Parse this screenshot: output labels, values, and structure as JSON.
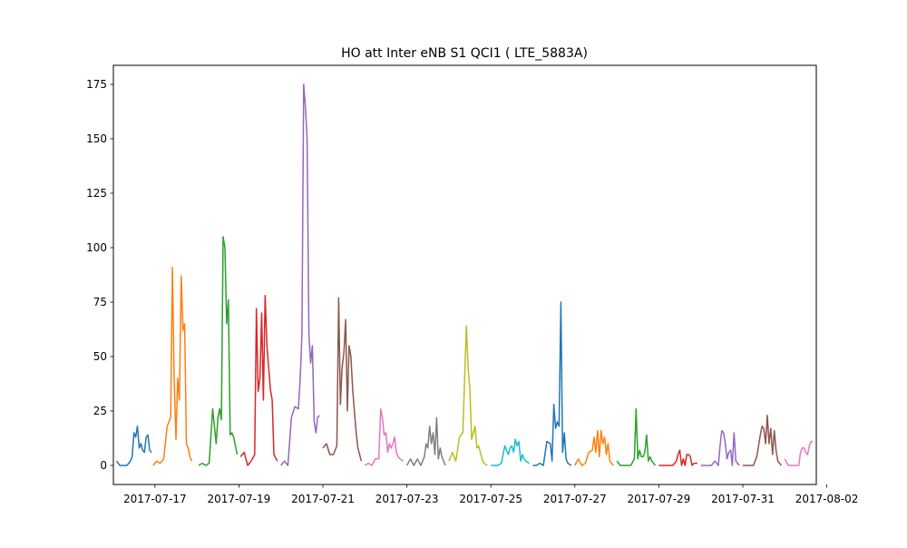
{
  "chart_data": {
    "type": "line",
    "title": "HO att Inter eNB S1 QCI1 ( LTE_5883A)",
    "xlabel": "",
    "ylabel": "",
    "ylim": [
      -8.75,
      183.75
    ],
    "xlim": [
      "2017-07-16 00:15",
      "2017-08-01 18:00"
    ],
    "yticks": [
      0,
      25,
      50,
      75,
      100,
      125,
      150,
      175
    ],
    "xticks": [
      "2017-07-17",
      "2017-07-19",
      "2017-07-21",
      "2017-07-23",
      "2017-07-25",
      "2017-07-27",
      "2017-07-29",
      "2017-07-31",
      "2017-08-02"
    ],
    "grid": false,
    "legend": "none",
    "colors": [
      "#1f77b4",
      "#ff7f0e",
      "#2ca02c",
      "#d62728",
      "#9467bd",
      "#8c564b",
      "#e377c2",
      "#7f7f7f",
      "#bcbd22",
      "#17becf"
    ],
    "series": [
      {
        "x": [
          "2017-07-16 02:00",
          "2017-07-16 04:00",
          "2017-07-16 06:00",
          "2017-07-16 08:00",
          "2017-07-16 10:00",
          "2017-07-16 11:00",
          "2017-07-16 12:00",
          "2017-07-16 13:00",
          "2017-07-16 14:00",
          "2017-07-16 15:00",
          "2017-07-16 16:00",
          "2017-07-16 17:00",
          "2017-07-16 18:00",
          "2017-07-16 19:00",
          "2017-07-16 20:00",
          "2017-07-16 21:00",
          "2017-07-16 22:00"
        ],
        "y": [
          2,
          0,
          0,
          0,
          2,
          4,
          15,
          13,
          18,
          8,
          10,
          7,
          6,
          13,
          14,
          7,
          6
        ]
      },
      {
        "x": [
          "2017-07-16 23:00",
          "2017-07-17 01:00",
          "2017-07-17 03:00",
          "2017-07-17 05:00",
          "2017-07-17 07:00",
          "2017-07-17 09:00",
          "2017-07-17 10:00",
          "2017-07-17 11:00",
          "2017-07-17 12:00",
          "2017-07-17 13:00",
          "2017-07-17 14:00",
          "2017-07-17 15:00",
          "2017-07-17 16:00",
          "2017-07-17 17:00",
          "2017-07-17 18:00",
          "2017-07-17 19:00",
          "2017-07-17 20:00",
          "2017-07-17 21:00"
        ],
        "y": [
          0,
          2,
          1,
          3,
          18,
          22,
          91,
          40,
          12,
          40,
          30,
          87,
          62,
          65,
          10,
          8,
          4,
          2
        ]
      },
      {
        "x": [
          "2017-07-18 01:00",
          "2017-07-18 03:00",
          "2017-07-18 05:00",
          "2017-07-18 07:00",
          "2017-07-18 09:00",
          "2017-07-18 11:00",
          "2017-07-18 12:00",
          "2017-07-18 13:00",
          "2017-07-18 14:00",
          "2017-07-18 15:00",
          "2017-07-18 16:00",
          "2017-07-18 17:00",
          "2017-07-18 18:00",
          "2017-07-18 19:00",
          "2017-07-18 20:00",
          "2017-07-18 21:00",
          "2017-07-18 23:00"
        ],
        "y": [
          0,
          1,
          0,
          1,
          26,
          10,
          22,
          26,
          21,
          105,
          100,
          65,
          76,
          14,
          15,
          13,
          5
        ]
      },
      {
        "x": [
          "2017-07-19 01:00",
          "2017-07-19 03:00",
          "2017-07-19 05:00",
          "2017-07-19 07:00",
          "2017-07-19 09:00",
          "2017-07-19 10:00",
          "2017-07-19 11:00",
          "2017-07-19 12:00",
          "2017-07-19 13:00",
          "2017-07-19 14:00",
          "2017-07-19 15:00",
          "2017-07-19 16:00",
          "2017-07-19 17:00",
          "2017-07-19 18:00",
          "2017-07-19 19:00",
          "2017-07-19 20:00",
          "2017-07-19 22:00"
        ],
        "y": [
          4,
          6,
          0,
          2,
          5,
          72,
          34,
          40,
          70,
          30,
          78,
          55,
          45,
          35,
          30,
          5,
          2
        ]
      },
      {
        "x": [
          "2017-07-20 00:00",
          "2017-07-20 02:00",
          "2017-07-20 04:00",
          "2017-07-20 06:00",
          "2017-07-20 08:00",
          "2017-07-20 10:00",
          "2017-07-20 11:00",
          "2017-07-20 12:00",
          "2017-07-20 13:00",
          "2017-07-20 14:00",
          "2017-07-20 15:00",
          "2017-07-20 16:00",
          "2017-07-20 17:00",
          "2017-07-20 18:00",
          "2017-07-20 19:00",
          "2017-07-20 20:00",
          "2017-07-20 21:00",
          "2017-07-20 22:00"
        ],
        "y": [
          0,
          2,
          0,
          22,
          27,
          26,
          39,
          60,
          175,
          165,
          150,
          60,
          47,
          55,
          20,
          15,
          22,
          23
        ]
      },
      {
        "x": [
          "2017-07-21 00:00",
          "2017-07-21 02:00",
          "2017-07-21 04:00",
          "2017-07-21 06:00",
          "2017-07-21 08:00",
          "2017-07-21 09:00",
          "2017-07-21 10:00",
          "2017-07-21 11:00",
          "2017-07-21 12:00",
          "2017-07-21 13:00",
          "2017-07-21 14:00",
          "2017-07-21 15:00",
          "2017-07-21 16:00",
          "2017-07-21 17:00",
          "2017-07-21 18:00",
          "2017-07-21 19:00",
          "2017-07-21 20:00",
          "2017-07-21 22:00"
        ],
        "y": [
          8,
          10,
          5,
          5,
          9,
          77,
          28,
          45,
          52,
          67,
          25,
          55,
          50,
          35,
          25,
          15,
          8,
          2
        ]
      },
      {
        "x": [
          "2017-07-22 00:00",
          "2017-07-22 02:00",
          "2017-07-22 04:00",
          "2017-07-22 06:00",
          "2017-07-22 08:00",
          "2017-07-22 09:00",
          "2017-07-22 10:00",
          "2017-07-22 11:00",
          "2017-07-22 12:00",
          "2017-07-22 13:00",
          "2017-07-22 14:00",
          "2017-07-22 15:00",
          "2017-07-22 16:00",
          "2017-07-22 17:00",
          "2017-07-22 18:00",
          "2017-07-22 19:00",
          "2017-07-22 20:00",
          "2017-07-22 22:00"
        ],
        "y": [
          0,
          1,
          0,
          3,
          3,
          26,
          22,
          14,
          15,
          6,
          10,
          8,
          10,
          13,
          6,
          4,
          3,
          2
        ]
      },
      {
        "x": [
          "2017-07-23 00:00",
          "2017-07-23 02:00",
          "2017-07-23 04:00",
          "2017-07-23 06:00",
          "2017-07-23 08:00",
          "2017-07-23 10:00",
          "2017-07-23 11:00",
          "2017-07-23 12:00",
          "2017-07-23 13:00",
          "2017-07-23 14:00",
          "2017-07-23 15:00",
          "2017-07-23 16:00",
          "2017-07-23 17:00",
          "2017-07-23 18:00",
          "2017-07-23 19:00",
          "2017-07-23 20:00",
          "2017-07-23 22:00"
        ],
        "y": [
          0,
          3,
          0,
          3,
          0,
          4,
          10,
          8,
          18,
          10,
          15,
          5,
          22,
          3,
          8,
          4,
          0
        ]
      },
      {
        "x": [
          "2017-07-24 00:00",
          "2017-07-24 02:00",
          "2017-07-24 04:00",
          "2017-07-24 06:00",
          "2017-07-24 08:00",
          "2017-07-24 10:00",
          "2017-07-24 11:00",
          "2017-07-24 12:00",
          "2017-07-24 13:00",
          "2017-07-24 14:00",
          "2017-07-24 15:00",
          "2017-07-24 16:00",
          "2017-07-24 17:00",
          "2017-07-24 18:00",
          "2017-07-24 19:00",
          "2017-07-24 20:00",
          "2017-07-24 22:00"
        ],
        "y": [
          2,
          6,
          2,
          13,
          15,
          64,
          45,
          35,
          12,
          15,
          18,
          8,
          9,
          6,
          3,
          1,
          0
        ]
      },
      {
        "x": [
          "2017-07-25 00:00",
          "2017-07-25 02:00",
          "2017-07-25 04:00",
          "2017-07-25 06:00",
          "2017-07-25 08:00",
          "2017-07-25 10:00",
          "2017-07-25 11:00",
          "2017-07-25 12:00",
          "2017-07-25 13:00",
          "2017-07-25 14:00",
          "2017-07-25 15:00",
          "2017-07-25 16:00",
          "2017-07-25 17:00",
          "2017-07-25 18:00",
          "2017-07-25 19:00",
          "2017-07-25 20:00",
          "2017-07-25 22:00"
        ],
        "y": [
          0,
          0,
          0,
          1,
          9,
          5,
          8,
          9,
          6,
          12,
          9,
          11,
          2,
          5,
          3,
          2,
          1
        ]
      },
      {
        "x": [
          "2017-07-26 00:00",
          "2017-07-26 02:00",
          "2017-07-26 04:00",
          "2017-07-26 06:00",
          "2017-07-26 08:00",
          "2017-07-26 10:00",
          "2017-07-26 11:00",
          "2017-07-26 12:00",
          "2017-07-26 13:00",
          "2017-07-26 14:00",
          "2017-07-26 15:00",
          "2017-07-26 16:00",
          "2017-07-26 17:00",
          "2017-07-26 18:00",
          "2017-07-26 19:00",
          "2017-07-26 20:00",
          "2017-07-26 22:00"
        ],
        "y": [
          0,
          0,
          1,
          0,
          11,
          10,
          2,
          28,
          17,
          20,
          18,
          75,
          6,
          15,
          3,
          1,
          0
        ]
      },
      {
        "x": [
          "2017-07-27 00:00",
          "2017-07-27 02:00",
          "2017-07-27 04:00",
          "2017-07-27 06:00",
          "2017-07-27 08:00",
          "2017-07-27 10:00",
          "2017-07-27 11:00",
          "2017-07-27 12:00",
          "2017-07-27 13:00",
          "2017-07-27 14:00",
          "2017-07-27 15:00",
          "2017-07-27 16:00",
          "2017-07-27 17:00",
          "2017-07-27 18:00",
          "2017-07-27 19:00",
          "2017-07-27 20:00",
          "2017-07-27 22:00"
        ],
        "y": [
          0,
          3,
          0,
          1,
          6,
          7,
          13,
          6,
          16,
          4,
          16,
          10,
          13,
          5,
          10,
          2,
          0
        ]
      },
      {
        "x": [
          "2017-07-28 00:00",
          "2017-07-28 02:00",
          "2017-07-28 04:00",
          "2017-07-28 06:00",
          "2017-07-28 08:00",
          "2017-07-28 10:00",
          "2017-07-28 11:00",
          "2017-07-28 12:00",
          "2017-07-28 13:00",
          "2017-07-28 14:00",
          "2017-07-28 15:00",
          "2017-07-28 16:00",
          "2017-07-28 17:00",
          "2017-07-28 18:00",
          "2017-07-28 19:00",
          "2017-07-28 20:00",
          "2017-07-28 22:00"
        ],
        "y": [
          2,
          0,
          0,
          0,
          0,
          3,
          26,
          3,
          7,
          4,
          4,
          6,
          14,
          2,
          4,
          2,
          0
        ]
      },
      {
        "x": [
          "2017-07-29 00:00",
          "2017-07-29 02:00",
          "2017-07-29 04:00",
          "2017-07-29 06:00",
          "2017-07-29 08:00",
          "2017-07-29 10:00",
          "2017-07-29 11:00",
          "2017-07-29 12:00",
          "2017-07-29 13:00",
          "2017-07-29 14:00",
          "2017-07-29 15:00",
          "2017-07-29 16:00",
          "2017-07-29 17:00",
          "2017-07-29 18:00",
          "2017-07-29 19:00",
          "2017-07-29 20:00",
          "2017-07-29 22:00"
        ],
        "y": [
          0,
          0,
          0,
          0,
          0,
          2,
          5,
          7,
          0,
          3,
          0,
          5,
          5,
          4,
          0,
          1,
          1
        ]
      },
      {
        "x": [
          "2017-07-30 00:00",
          "2017-07-30 02:00",
          "2017-07-30 04:00",
          "2017-07-30 06:00",
          "2017-07-30 08:00",
          "2017-07-30 10:00",
          "2017-07-30 11:00",
          "2017-07-30 12:00",
          "2017-07-30 13:00",
          "2017-07-30 14:00",
          "2017-07-30 15:00",
          "2017-07-30 16:00",
          "2017-07-30 17:00",
          "2017-07-30 18:00",
          "2017-07-30 19:00",
          "2017-07-30 20:00",
          "2017-07-30 22:00"
        ],
        "y": [
          0,
          0,
          0,
          0,
          2,
          0,
          9,
          16,
          15,
          10,
          3,
          6,
          7,
          0,
          15,
          2,
          0
        ]
      },
      {
        "x": [
          "2017-07-31 00:00",
          "2017-07-31 02:00",
          "2017-07-31 04:00",
          "2017-07-31 06:00",
          "2017-07-31 08:00",
          "2017-07-31 10:00",
          "2017-07-31 11:00",
          "2017-07-31 12:00",
          "2017-07-31 13:00",
          "2017-07-31 14:00",
          "2017-07-31 15:00",
          "2017-07-31 16:00",
          "2017-07-31 17:00",
          "2017-07-31 18:00",
          "2017-07-31 19:00",
          "2017-07-31 20:00",
          "2017-07-31 22:00"
        ],
        "y": [
          0,
          0,
          0,
          0,
          4,
          14,
          18,
          17,
          10,
          23,
          10,
          17,
          5,
          16,
          7,
          2,
          0
        ]
      },
      {
        "x": [
          "2017-08-01 00:00",
          "2017-08-01 02:00",
          "2017-08-01 04:00",
          "2017-08-01 06:00",
          "2017-08-01 08:00",
          "2017-08-01 09:00",
          "2017-08-01 10:00",
          "2017-08-01 11:00",
          "2017-08-01 12:00",
          "2017-08-01 13:00",
          "2017-08-01 14:00",
          "2017-08-01 15:00",
          "2017-08-01 16:00"
        ],
        "y": [
          3,
          0,
          0,
          0,
          0,
          6,
          8,
          8,
          6,
          5,
          9,
          11,
          11
        ]
      }
    ]
  }
}
